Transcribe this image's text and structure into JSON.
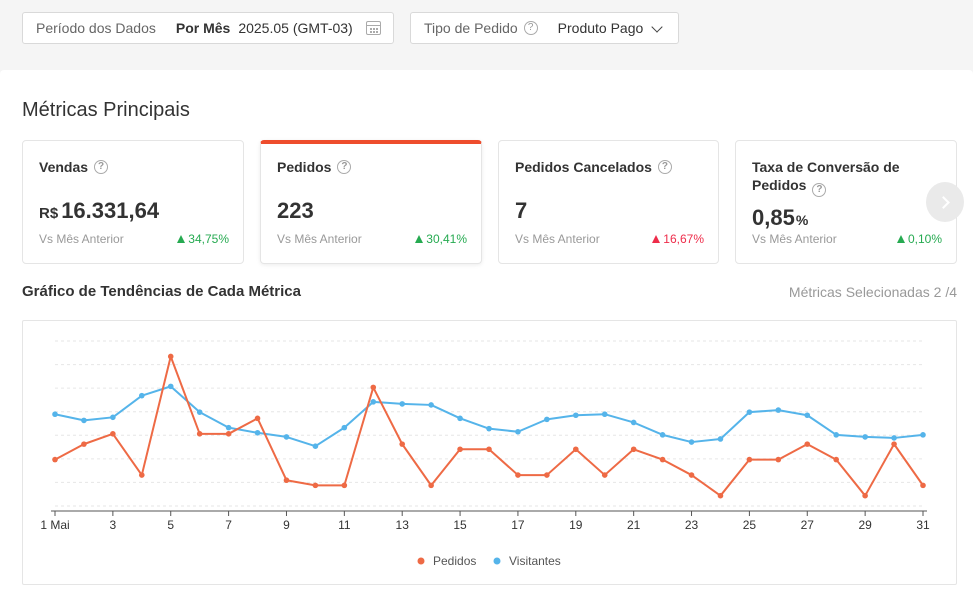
{
  "filters": {
    "period_label": "Período dos Dados",
    "period_mode": "Por Mês",
    "period_value": "2025.05 (GMT-03)",
    "order_type_label": "Tipo de Pedido",
    "order_type_value": "Produto Pago"
  },
  "metrics": {
    "title": "Métricas Principais",
    "cards": [
      {
        "title": "Vendas",
        "prefix": "R$",
        "value": "16.331,64",
        "suffix": "",
        "compare": "Vs Mês Anterior",
        "delta": "34,75%",
        "trend": "up",
        "color": "#26aa51"
      },
      {
        "title": "Pedidos",
        "prefix": "",
        "value": "223",
        "suffix": "",
        "compare": "Vs Mês Anterior",
        "delta": "30,41%",
        "trend": "up",
        "color": "#26aa51",
        "active": true
      },
      {
        "title": "Pedidos Cancelados",
        "prefix": "",
        "value": "7",
        "suffix": "",
        "compare": "Vs Mês Anterior",
        "delta": "16,67%",
        "trend": "up",
        "color": "#ee2c4a"
      },
      {
        "title": "Taxa de Conversão de Pedidos",
        "prefix": "",
        "value": "0,85",
        "suffix": "%",
        "compare": "Vs Mês Anterior",
        "delta": "0,10%",
        "trend": "up",
        "color": "#26aa51"
      }
    ]
  },
  "trend": {
    "title": "Gráfico de Tendências de Cada Métrica",
    "selected": "Métricas Selecionadas 2 /4"
  },
  "chart_data": {
    "type": "line",
    "x": [
      1,
      2,
      3,
      4,
      5,
      6,
      7,
      8,
      9,
      10,
      11,
      12,
      13,
      14,
      15,
      16,
      17,
      18,
      19,
      20,
      21,
      22,
      23,
      24,
      25,
      26,
      27,
      28,
      29,
      30,
      31
    ],
    "x_tick_labels": [
      "1 Mai",
      "3",
      "5",
      "7",
      "9",
      "11",
      "13",
      "15",
      "17",
      "19",
      "21",
      "23",
      "25",
      "27",
      "29",
      "31"
    ],
    "x_tick_values": [
      1,
      3,
      5,
      7,
      9,
      11,
      13,
      15,
      17,
      19,
      21,
      23,
      25,
      27,
      29,
      31
    ],
    "grid": true,
    "legend_position": "bottom",
    "series": [
      {
        "name": "Pedidos",
        "color": "#ee6a45",
        "values": [
          6.5,
          8,
          9,
          5,
          16.5,
          9,
          9,
          10.5,
          4.5,
          4,
          4,
          13.5,
          8,
          4,
          7.5,
          7.5,
          5,
          5,
          7.5,
          5,
          7.5,
          6.5,
          5,
          3,
          6.5,
          6.5,
          8,
          6.5,
          3,
          8,
          4
        ]
      },
      {
        "name": "Visitantes",
        "color": "#55b4ea",
        "values": [
          10.9,
          10.3,
          10.6,
          12.7,
          13.6,
          11.1,
          9.6,
          9.1,
          8.7,
          7.8,
          9.6,
          12.1,
          11.9,
          11.8,
          10.5,
          9.5,
          9.2,
          10.4,
          10.8,
          10.9,
          10.1,
          8.9,
          8.2,
          8.5,
          11.1,
          11.3,
          10.8,
          8.9,
          8.7,
          8.6,
          8.9
        ]
      }
    ],
    "ylim": [
      2,
      18
    ]
  }
}
